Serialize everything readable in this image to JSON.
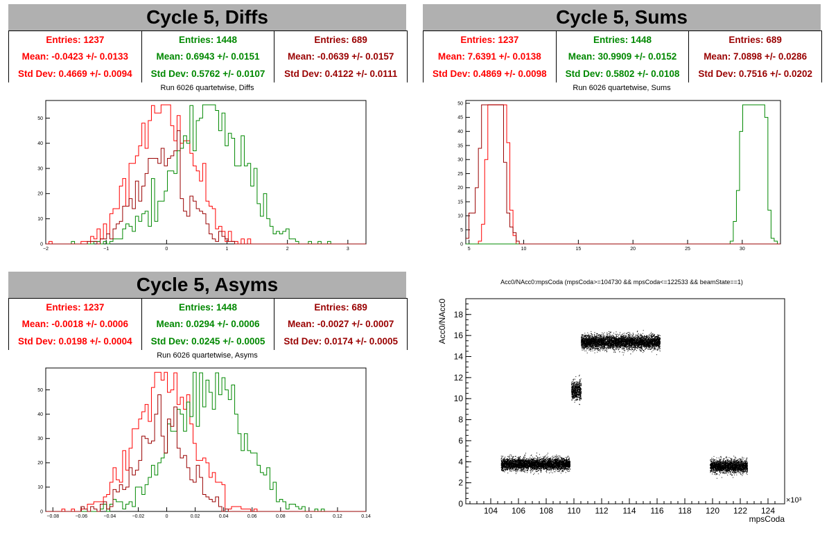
{
  "panels": [
    {
      "title": "Cycle 5, Diffs",
      "subtitle": "Run 6026 quartetwise, Diffs",
      "stats": [
        {
          "entries": "Entries: 1237",
          "mean": "Mean: -0.0423 +/- 0.0133",
          "std": "Std Dev: 0.4669 +/- 0.0094",
          "color": "#ff0000"
        },
        {
          "entries": "Entries: 1448",
          "mean": "Mean: 0.6943 +/- 0.0151",
          "std": "Std Dev: 0.5762 +/- 0.0107",
          "color": "#008800"
        },
        {
          "entries": "Entries: 689",
          "mean": "Mean: -0.0639 +/- 0.0157",
          "std": "Std Dev: 0.4122 +/- 0.0111",
          "color": "#990000"
        }
      ]
    },
    {
      "title": "Cycle 5, Sums",
      "subtitle": "Run 6026 quartetwise, Sums",
      "stats": [
        {
          "entries": "Entries: 1237",
          "mean": "Mean: 7.6391 +/- 0.0138",
          "std": "Std Dev: 0.4869 +/- 0.0098",
          "color": "#ff0000"
        },
        {
          "entries": "Entries: 1448",
          "mean": "Mean: 30.9909 +/- 0.0152",
          "std": "Std Dev: 0.5802 +/- 0.0108",
          "color": "#008800"
        },
        {
          "entries": "Entries: 689",
          "mean": "Mean: 7.0898 +/- 0.0286",
          "std": "Std Dev: 0.7516 +/- 0.0202",
          "color": "#990000"
        }
      ]
    },
    {
      "title": "Cycle 5, Asyms",
      "subtitle": "Run 6026 quartetwise, Asyms",
      "stats": [
        {
          "entries": "Entries: 1237",
          "mean": "Mean: -0.0018 +/- 0.0006",
          "std": "Std Dev: 0.0198 +/- 0.0004",
          "color": "#ff0000"
        },
        {
          "entries": "Entries: 1448",
          "mean": "Mean: 0.0294 +/- 0.0006",
          "std": "Std Dev: 0.0245 +/- 0.0005",
          "color": "#008800"
        },
        {
          "entries": "Entries: 689",
          "mean": "Mean: -0.0027 +/- 0.0007",
          "std": "Std Dev: 0.0174 +/- 0.0005",
          "color": "#990000"
        }
      ]
    }
  ],
  "scatter_title": "Acc0/NAcc0:mpsCoda (mpsCoda>=104730 && mpsCoda<=122533 && beamState==1)",
  "chart_data": [
    {
      "type": "histogram",
      "title": "Run 6026 quartetwise, Diffs",
      "xlim": [
        -2,
        3.3
      ],
      "ylim": [
        0,
        57
      ],
      "xticks": [
        "-2",
        "-1",
        "0",
        "1",
        "2",
        "3"
      ],
      "yticks": [
        "0",
        "10",
        "20",
        "30",
        "40",
        "50"
      ],
      "series": [
        {
          "entries": 1237,
          "mean": -0.0423,
          "std": 0.4669,
          "color": "#ff0000"
        },
        {
          "entries": 1448,
          "mean": 0.6943,
          "std": 0.5762,
          "color": "#008800"
        },
        {
          "entries": 689,
          "mean": -0.0639,
          "std": 0.4122,
          "color": "#990000"
        }
      ]
    },
    {
      "type": "histogram",
      "title": "Run 6026 quartetwise, Sums",
      "xlim": [
        4.7,
        33.5
      ],
      "ylim": [
        0,
        51
      ],
      "xticks": [
        "5",
        "10",
        "15",
        "20",
        "25",
        "30"
      ],
      "yticks": [
        "0",
        "5",
        "10",
        "15",
        "20",
        "25",
        "30",
        "35",
        "40",
        "45",
        "50"
      ],
      "series": [
        {
          "entries": 1237,
          "mean": 7.6391,
          "std": 0.4869,
          "color": "#ff0000"
        },
        {
          "entries": 1448,
          "mean": 30.9909,
          "std": 0.5802,
          "color": "#008800"
        },
        {
          "entries": 689,
          "mean": 7.0898,
          "std": 0.7516,
          "color": "#990000"
        }
      ]
    },
    {
      "type": "histogram",
      "title": "Run 6026 quartetwise, Asyms",
      "xlim": [
        -0.085,
        0.14
      ],
      "ylim": [
        0,
        59
      ],
      "xticks": [
        "-0.08",
        "-0.06",
        "-0.04",
        "-0.02",
        "0",
        "0.02",
        "0.04",
        "0.06",
        "0.08",
        "0.1",
        "0.12",
        "0.14"
      ],
      "yticks": [
        "0",
        "10",
        "20",
        "30",
        "40",
        "50"
      ],
      "series": [
        {
          "entries": 1237,
          "mean": -0.0018,
          "std": 0.0198,
          "color": "#ff0000"
        },
        {
          "entries": 1448,
          "mean": 0.0294,
          "std": 0.0245,
          "color": "#008800"
        },
        {
          "entries": 689,
          "mean": -0.0027,
          "std": 0.0174,
          "color": "#990000"
        }
      ]
    },
    {
      "type": "scatter",
      "title": "Acc0/NAcc0:mpsCoda (mpsCoda>=104730 && mpsCoda<=122533 && beamState==1)",
      "xlabel": "mpsCoda",
      "ylabel": "Acc0/NAcc0",
      "xexp": "×10³",
      "xlim": [
        102.2,
        125.2
      ],
      "ylim": [
        0,
        19.5
      ],
      "xticks": [
        "104",
        "106",
        "108",
        "110",
        "112",
        "114",
        "116",
        "118",
        "120",
        "122",
        "124"
      ],
      "yticks": [
        "0",
        "2",
        "4",
        "6",
        "8",
        "10",
        "12",
        "14",
        "16",
        "18"
      ],
      "clusters": [
        {
          "x": [
            104.73,
            109.7
          ],
          "y_center": 3.8,
          "y_spread": 0.55
        },
        {
          "x": [
            109.8,
            110.5
          ],
          "y_center": 10.8,
          "y_spread": 0.9
        },
        {
          "x": [
            110.5,
            116.2
          ],
          "y_center": 15.4,
          "y_spread": 0.65
        },
        {
          "x": [
            119.8,
            122.5
          ],
          "y_center": 3.6,
          "y_spread": 0.6
        }
      ]
    }
  ]
}
